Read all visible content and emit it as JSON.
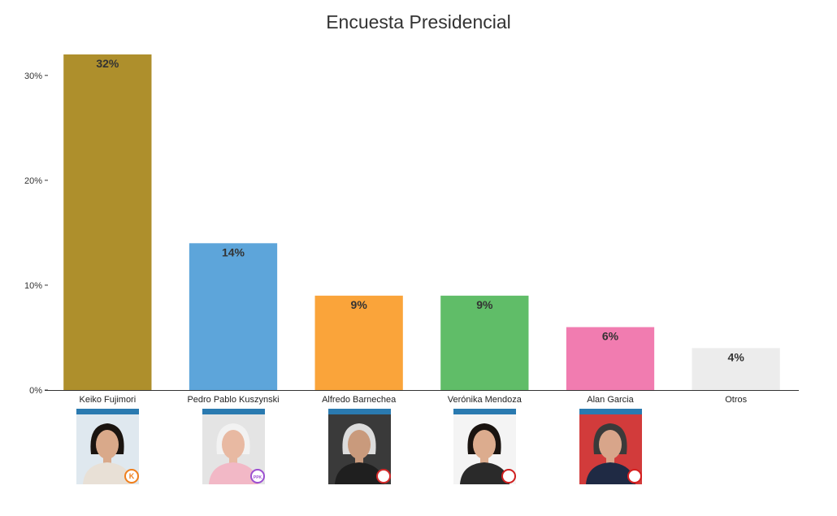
{
  "chart_data": {
    "type": "bar",
    "title": "Encuesta Presidencial",
    "xlabel": "",
    "ylabel": "",
    "ylim": [
      0,
      32
    ],
    "yticks": [
      "0%",
      "10%",
      "20%",
      "30%"
    ],
    "ytick_values": [
      0,
      10,
      20,
      30
    ],
    "grid": false,
    "categories": [
      "Keiko Fujimori",
      "Pedro Pablo Kuszynski",
      "Alfredo Barnechea",
      "Verónika Mendoza",
      "Alan Garcia",
      "Otros"
    ],
    "values": [
      32,
      14,
      9,
      9,
      6,
      4
    ],
    "value_labels": [
      "32%",
      "14%",
      "9%",
      "9%",
      "6%",
      "4%"
    ],
    "colors": [
      "#ae8f2c",
      "#5da5da",
      "#faa43a",
      "#60bd68",
      "#f17cb0",
      "#ececec"
    ]
  },
  "photos": [
    {
      "candidate": "Keiko Fujimori",
      "badge": "K",
      "badge_color": "#f07f1c",
      "bg": "#dfe8ef",
      "skin": "#d9a98a",
      "hair": "#1a1410",
      "clothes": "#e8e0d6"
    },
    {
      "candidate": "Pedro Pablo Kuszynski",
      "badge": "PPK",
      "badge_color": "#9b4fd1",
      "bg": "#e4e4e4",
      "skin": "#e8b9a2",
      "hair": "#f2f2f2",
      "clothes": "#f2b8c6"
    },
    {
      "candidate": "Alfredo Barnechea",
      "badge": "",
      "badge_color": "#d42a2a",
      "bg": "#3a3a3a",
      "skin": "#c99a7c",
      "hair": "#dcdcdc",
      "clothes": "#1f1f1f"
    },
    {
      "candidate": "Verónika Mendoza",
      "badge": "",
      "badge_color": "#d01f1f",
      "bg": "#f4f4f4",
      "skin": "#dcac8e",
      "hair": "#1a1410",
      "clothes": "#2a2a2a"
    },
    {
      "candidate": "Alan Garcia",
      "badge": "",
      "badge_color": "#d61f1f",
      "bg": "#d23b3b",
      "skin": "#d8a58a",
      "hair": "#3a3a3a",
      "clothes": "#1f2a44"
    }
  ]
}
